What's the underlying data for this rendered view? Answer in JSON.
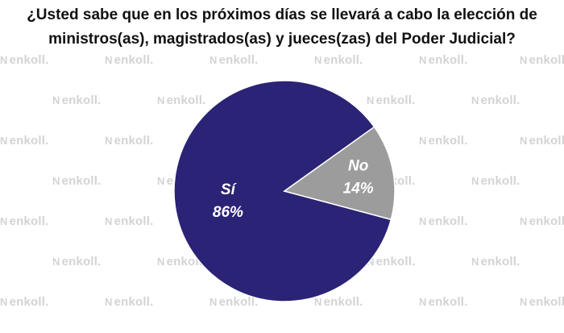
{
  "title_lines": [
    "¿Usted sabe que en los próximos días se llevará a cabo la elección de",
    "ministros(as), magistrados(as) y jueces(zas) del Poder Judicial?"
  ],
  "watermark": "enkoll.",
  "chart_data": {
    "type": "pie",
    "slices": [
      {
        "label": "Sí",
        "value": 86,
        "value_label": "86%",
        "color": "#2b2375"
      },
      {
        "label": "No",
        "value": 14,
        "value_label": "14%",
        "color": "#9c9c9c"
      }
    ]
  }
}
